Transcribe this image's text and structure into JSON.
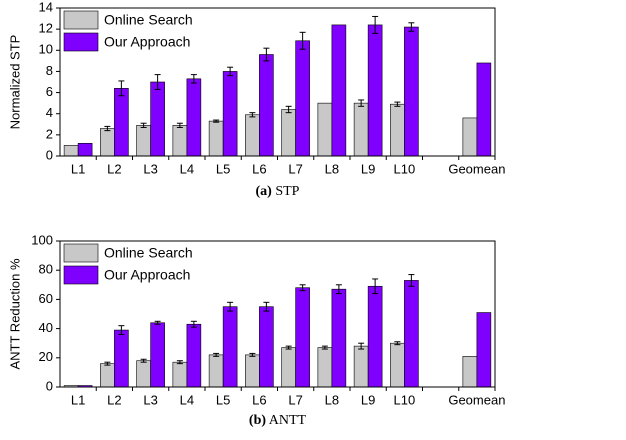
{
  "chart_data": [
    {
      "type": "bar",
      "caption_label": "(a)",
      "caption": "STP",
      "ylabel": "Normalized STP",
      "categories": [
        "L1",
        "L2",
        "L3",
        "L4",
        "L5",
        "L6",
        "L7",
        "L8",
        "L9",
        "L10",
        null,
        "Geomean"
      ],
      "series": [
        {
          "name": "Online Search",
          "color": "#c8c8c8",
          "values": [
            1.0,
            2.6,
            2.9,
            2.9,
            3.3,
            3.9,
            4.4,
            5.0,
            5.0,
            4.9,
            null,
            3.6
          ],
          "errors": [
            null,
            0.2,
            0.2,
            0.2,
            0.1,
            0.2,
            0.3,
            null,
            0.3,
            0.2,
            null,
            null
          ]
        },
        {
          "name": "Our Approach",
          "color": "#7f00ff",
          "values": [
            1.2,
            6.4,
            7.0,
            7.3,
            8.0,
            9.6,
            10.9,
            12.4,
            12.4,
            12.2,
            null,
            8.8
          ],
          "errors": [
            null,
            0.7,
            0.7,
            0.4,
            0.4,
            0.6,
            0.8,
            null,
            0.8,
            0.4,
            null,
            null
          ]
        }
      ],
      "ylim": [
        0,
        14
      ],
      "yticks": [
        0,
        2,
        4,
        6,
        8,
        10,
        12,
        14
      ],
      "legend": "upper left"
    },
    {
      "type": "bar",
      "caption_label": "(b)",
      "caption": "ANTT",
      "ylabel": "ANTT Reduction %",
      "categories": [
        "L1",
        "L2",
        "L3",
        "L4",
        "L5",
        "L6",
        "L7",
        "L8",
        "L9",
        "L10",
        null,
        "Geomean"
      ],
      "series": [
        {
          "name": "Online Search",
          "color": "#c8c8c8",
          "values": [
            1,
            16,
            18,
            17,
            22,
            22,
            27,
            27,
            28,
            30,
            null,
            21
          ],
          "errors": [
            null,
            1,
            1,
            1,
            1,
            1,
            1,
            1,
            2,
            1,
            null,
            null
          ]
        },
        {
          "name": "Our Approach",
          "color": "#7f00ff",
          "values": [
            1,
            39,
            44,
            43,
            55,
            55,
            68,
            67,
            69,
            73,
            null,
            51
          ],
          "errors": [
            null,
            3,
            1,
            2,
            3,
            3,
            2,
            3,
            5,
            4,
            null,
            null
          ]
        }
      ],
      "ylim": [
        0,
        100
      ],
      "yticks": [
        0,
        20,
        40,
        60,
        80,
        100
      ],
      "legend": "upper left"
    }
  ]
}
